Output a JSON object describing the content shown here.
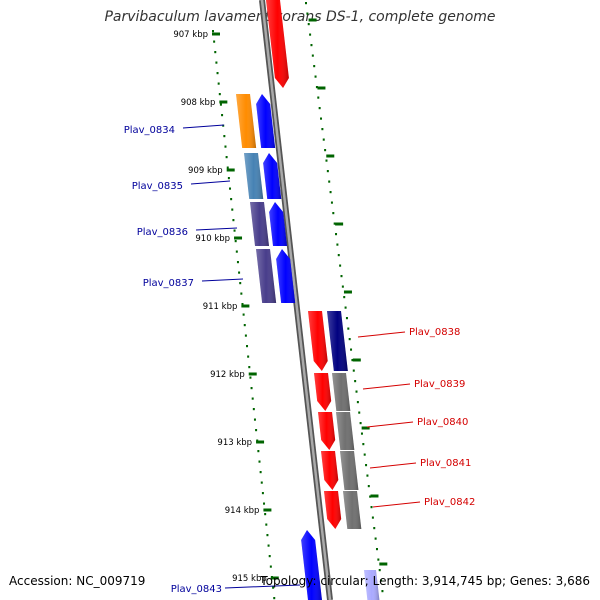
{
  "title": "Parvibaculum lavamentivorans DS-1, complete genome",
  "footer": {
    "accession": "Accession: NC_009719",
    "topology": "Topology: circular; Length: 3,914,745 bp; Genes: 3,686"
  },
  "ticks": [
    "907 kbp",
    "908 kbp",
    "909 kbp",
    "910 kbp",
    "911 kbp",
    "912 kbp",
    "913 kbp",
    "914 kbp",
    "915 kbp"
  ],
  "colors": {
    "forward_cds": "#0000ff",
    "reverse_cds": "#ff0000",
    "backbone": "#888888",
    "tick_mark": "#006400",
    "forward_label": "#00009b",
    "reverse_label": "#d40000"
  },
  "genes": [
    {
      "name": "Plav_0834",
      "strand": "forward",
      "cog_color": "#ff8c00"
    },
    {
      "name": "Plav_0835",
      "strand": "forward",
      "cog_color": "#4682b4"
    },
    {
      "name": "Plav_0836",
      "strand": "forward",
      "cog_color": "#483d8b"
    },
    {
      "name": "Plav_0837",
      "strand": "forward",
      "cog_color": "#483d8b"
    },
    {
      "name": "Plav_0838",
      "strand": "reverse",
      "cog_color": "#000080"
    },
    {
      "name": "Plav_0839",
      "strand": "reverse",
      "cog_color": "#707070"
    },
    {
      "name": "Plav_0840",
      "strand": "reverse",
      "cog_color": "#707070"
    },
    {
      "name": "Plav_0841",
      "strand": "reverse",
      "cog_color": "#707070"
    },
    {
      "name": "Plav_0842",
      "strand": "reverse",
      "cog_color": "#707070"
    },
    {
      "name": "Plav_0843",
      "strand": "forward",
      "cog_color": "#aaaaff"
    }
  ]
}
